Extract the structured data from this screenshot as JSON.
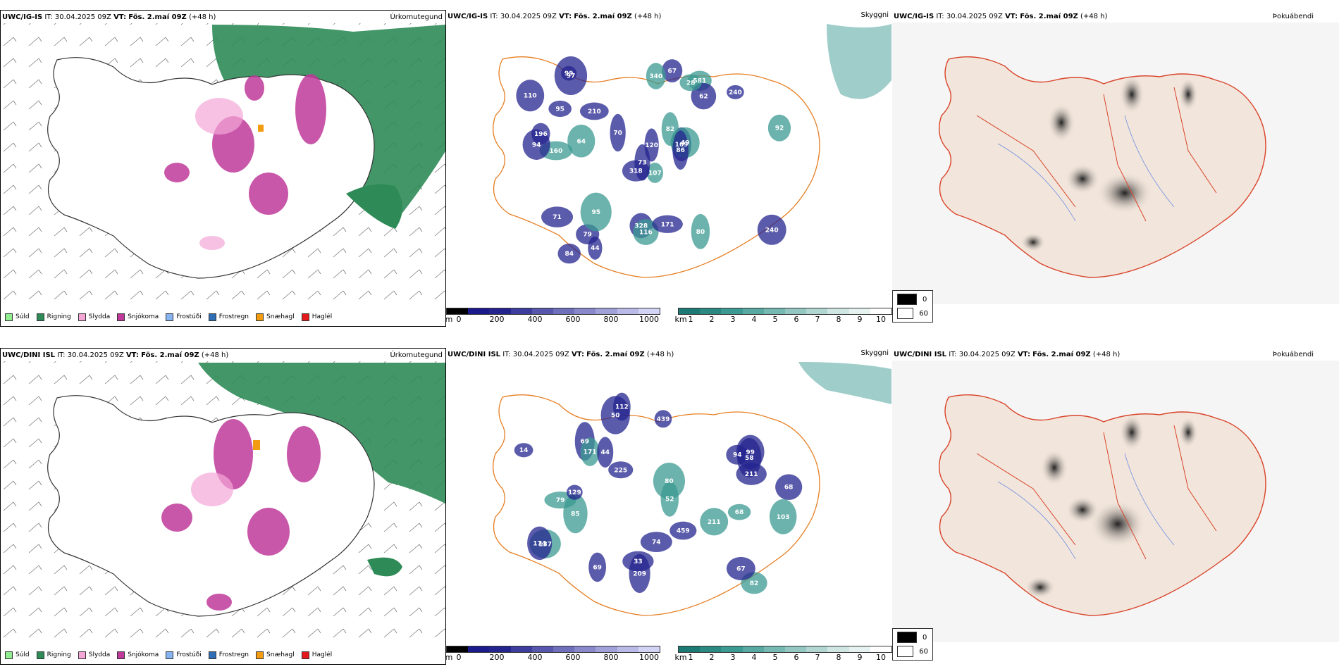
{
  "rows": [
    {
      "model": "UWC/IG-IS",
      "it_label": "IT:",
      "it_value": "30.04.2025 09Z",
      "vt_label": "VT:",
      "vt_value": "Fös. 2.maí 09Z",
      "lead": "(+48 h)",
      "precip_title": "Úrkomutegund",
      "cloud_title": "Skyggni",
      "fog_title": "Þokuábendi",
      "vis_numbers": [
        "107",
        "73",
        "169",
        "581",
        "62",
        "97",
        "160",
        "318",
        "84",
        "82",
        "70",
        "79",
        "49",
        "95",
        "94",
        "92",
        "328",
        "210",
        "95",
        "240",
        "67",
        "64",
        "44",
        "86",
        "116",
        "71",
        "110",
        "80",
        "99",
        "171",
        "340",
        "196",
        "240",
        "28",
        "120"
      ]
    },
    {
      "model": "UWC/DINI ISL",
      "it_label": "IT:",
      "it_value": "30.04.2025 09Z",
      "vt_label": "VT:",
      "vt_value": "Fös. 2.maí 09Z",
      "lead": "(+48 h)",
      "precip_title": "Úrkomutegund",
      "cloud_title": "Skyggni",
      "fog_title": "Þokuábendi",
      "vis_numbers": [
        "103",
        "94",
        "69",
        "80",
        "68",
        "14",
        "137",
        "112",
        "99",
        "171",
        "459",
        "209",
        "211",
        "50",
        "33",
        "79",
        "69",
        "74",
        "85",
        "174",
        "44",
        "52",
        "225",
        "439",
        "82",
        "211",
        "67",
        "68",
        "129",
        "58"
      ]
    }
  ],
  "precip_legend": [
    {
      "label": "Súld",
      "color": "#90EE90"
    },
    {
      "label": "Rigning",
      "color": "#2E8B57"
    },
    {
      "label": "Slydda",
      "color": "#F4A6D7"
    },
    {
      "label": "Snjókoma",
      "color": "#C0399A"
    },
    {
      "label": "Frostúði",
      "color": "#87B4F0"
    },
    {
      "label": "Frostregn",
      "color": "#2F6DB5"
    },
    {
      "label": "Snæhagl",
      "color": "#F39C12"
    },
    {
      "label": "Haglél",
      "color": "#E41A1C"
    }
  ],
  "height_bar": {
    "unit": "m",
    "ticks": [
      "0",
      "200",
      "400",
      "600",
      "800",
      "1000"
    ],
    "colors": [
      "#000000",
      "#1a1a8c",
      "#24248f",
      "#3d3d9e",
      "#5656ad",
      "#6f6fbc",
      "#8888cb",
      "#a1a1da",
      "#babae9",
      "#d3d3f5"
    ]
  },
  "cloud_bar": {
    "unit": "km",
    "ticks": [
      "1",
      "2",
      "3",
      "4",
      "5",
      "6",
      "7",
      "8",
      "9",
      "10"
    ],
    "colors": [
      "#1b7a73",
      "#2a8a82",
      "#3b9a92",
      "#58a9a2",
      "#76b8b2",
      "#94c7c2",
      "#b2d6d2",
      "#cfe6e3",
      "#e6f2f0",
      "#ffffff"
    ]
  },
  "fog_legend": [
    {
      "label": "0",
      "color": "#000000"
    },
    {
      "label": "60",
      "color": "#ffffff"
    }
  ]
}
